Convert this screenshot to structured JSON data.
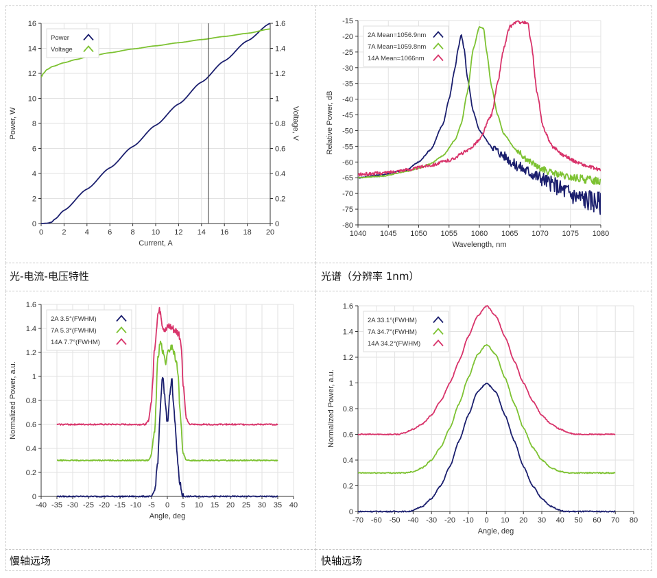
{
  "captions": {
    "liv": "光-电流-电压特性",
    "spectrum": "光谱（分辨率 1nm）",
    "slow_axis": "慢轴远场",
    "fast_axis": "快轴远场"
  },
  "colors": {
    "navy": "#1b1f6e",
    "green": "#7dc232",
    "magenta": "#d8336a",
    "grid": "#e2e2e2",
    "axis": "#333333"
  },
  "chart_data": [
    {
      "id": "liv",
      "type": "line",
      "title": "",
      "xlabel": "Current, A",
      "ylabel": "Power, W",
      "y2label": "Voltage, V",
      "xlim": [
        0,
        20
      ],
      "ylim": [
        0,
        16
      ],
      "y2lim": [
        0,
        1.6
      ],
      "xticks": [
        0,
        2,
        4,
        6,
        8,
        10,
        12,
        14,
        16,
        18,
        20
      ],
      "xtick_labels": [
        "0",
        "2",
        "4",
        "6",
        "8",
        "10",
        "12",
        "14",
        "16",
        "18",
        "20"
      ],
      "yticks": [
        0,
        2,
        4,
        6,
        8,
        10,
        12,
        14,
        16
      ],
      "ytick_labels": [
        "0",
        "2",
        "4",
        "6",
        "8",
        "10",
        "12",
        "14",
        "16"
      ],
      "y2ticks": [
        0,
        0.2,
        0.4,
        0.6,
        0.8,
        1,
        1.2,
        1.4,
        1.6
      ],
      "y2tick_labels": [
        "0",
        "0.2",
        "0.4",
        "0.6",
        "0.8",
        "1",
        "1.2",
        "1.4",
        "1.6"
      ],
      "legend_position": "top-left",
      "marker_line_x": 14.6,
      "series": [
        {
          "name": "Power",
          "color": "navy",
          "axis": "y",
          "x": [
            0,
            0.5,
            0.9,
            1.2,
            2,
            4,
            6,
            8,
            10,
            12,
            14,
            16,
            18,
            20
          ],
          "y": [
            0,
            0.02,
            0.1,
            0.35,
            1.05,
            2.75,
            4.45,
            6.15,
            7.85,
            9.55,
            11.3,
            13.0,
            14.6,
            16.0
          ]
        },
        {
          "name": "Voltage",
          "color": "green",
          "axis": "y2",
          "x": [
            0,
            0.2,
            0.5,
            1,
            2,
            3,
            4,
            6,
            8,
            10,
            12,
            14,
            16,
            18,
            20
          ],
          "y": [
            1.17,
            1.2,
            1.23,
            1.255,
            1.285,
            1.31,
            1.33,
            1.365,
            1.395,
            1.42,
            1.445,
            1.47,
            1.495,
            1.52,
            1.555
          ]
        }
      ]
    },
    {
      "id": "spectrum",
      "type": "line",
      "title": "",
      "xlabel": "Wavelength, nm",
      "ylabel": "Relative Power, dB",
      "xlim": [
        1040,
        1080
      ],
      "ylim": [
        -80,
        -15
      ],
      "xticks": [
        1040,
        1045,
        1050,
        1055,
        1060,
        1065,
        1070,
        1075,
        1080
      ],
      "xtick_labels": [
        "1040",
        "1045",
        "1050",
        "1055",
        "1060",
        "1065",
        "1070",
        "1075",
        "1080"
      ],
      "yticks": [
        -80,
        -75,
        -70,
        -65,
        -60,
        -55,
        -50,
        -45,
        -40,
        -35,
        -30,
        -25,
        -20,
        -15
      ],
      "ytick_labels": [
        "-80",
        "-75",
        "-70",
        "-65",
        "-60",
        "-55",
        "-50",
        "-45",
        "-40",
        "-35",
        "-30",
        "-25",
        "-20",
        "-15"
      ],
      "legend_position": "top-left",
      "series": [
        {
          "name": "2A Mean=1056.9nm",
          "color": "navy",
          "noise": 1.2,
          "noise_from": 1062,
          "noise_extra": 2.5,
          "x": [
            1040,
            1044,
            1048,
            1050,
            1052,
            1054,
            1055,
            1056,
            1056.5,
            1057,
            1057.5,
            1058,
            1059,
            1060,
            1062,
            1064,
            1066,
            1068,
            1070,
            1072,
            1074,
            1076,
            1078,
            1080
          ],
          "y": [
            -65,
            -64,
            -62.5,
            -60,
            -56,
            -48,
            -40,
            -30,
            -24,
            -19.5,
            -24,
            -33,
            -44,
            -50,
            -55,
            -58,
            -61,
            -63,
            -65,
            -67,
            -69,
            -71,
            -72,
            -73
          ]
        },
        {
          "name": "7A Mean=1059.8nm",
          "color": "green",
          "noise": 0.8,
          "noise_from": 1066,
          "noise_extra": 0.6,
          "x": [
            1040,
            1044,
            1048,
            1050,
            1052,
            1054,
            1056,
            1057,
            1058,
            1059,
            1060,
            1060.7,
            1061.2,
            1062,
            1063,
            1064,
            1066,
            1068,
            1070,
            1072,
            1075,
            1080
          ],
          "y": [
            -65,
            -64.5,
            -63,
            -62,
            -60.5,
            -58,
            -53,
            -48,
            -38,
            -24,
            -17,
            -17.5,
            -25,
            -36,
            -45,
            -51,
            -56,
            -59.5,
            -62,
            -63.5,
            -65,
            -66
          ]
        },
        {
          "name": "14A Mean=1066nm",
          "color": "magenta",
          "noise": 0.5,
          "noise_from": 1040,
          "noise_extra": 0,
          "x": [
            1040,
            1044,
            1048,
            1052,
            1055,
            1058,
            1060,
            1062,
            1063,
            1064,
            1065,
            1066,
            1067,
            1068,
            1068.6,
            1069.5,
            1070.5,
            1072,
            1074,
            1076,
            1078,
            1080
          ],
          "y": [
            -64,
            -63.5,
            -62.5,
            -61,
            -59.5,
            -56.5,
            -53,
            -45,
            -35,
            -24,
            -17,
            -15.5,
            -15.5,
            -16,
            -23,
            -38,
            -49,
            -55,
            -58,
            -60,
            -61.5,
            -62.5
          ]
        }
      ]
    },
    {
      "id": "slow_axis",
      "type": "line",
      "title": "",
      "xlabel": "Angle, deg",
      "ylabel": "Normalized Power, a.u.",
      "xlim": [
        -40,
        40
      ],
      "ylim": [
        0,
        1.6
      ],
      "xticks": [
        -40,
        -35,
        -30,
        -25,
        -20,
        -15,
        -10,
        -5,
        0,
        5,
        10,
        15,
        20,
        25,
        30,
        35,
        40
      ],
      "xtick_labels": [
        "-40",
        "-35",
        "-30",
        "-25",
        "-20",
        "-15",
        "-10",
        "-5",
        "0",
        "5",
        "10",
        "15",
        "20",
        "25",
        "30",
        "35",
        "40"
      ],
      "yticks": [
        0,
        0.2,
        0.4,
        0.6,
        0.8,
        1,
        1.2,
        1.4,
        1.6
      ],
      "ytick_labels": [
        "0",
        "0.2",
        "0.4",
        "0.6",
        "0.8",
        "1",
        "1.2",
        "1.4",
        "1.6"
      ],
      "legend_position": "top-left",
      "series": [
        {
          "name": "2A 3.5°(FWHM)",
          "color": "navy",
          "noise": 0.03,
          "noise_from": -4,
          "noise_to": 5,
          "x": [
            -35,
            -5,
            -4,
            -3,
            -2.2,
            -1.5,
            -0.8,
            0,
            0.8,
            1.4,
            2,
            2.6,
            3.2,
            4,
            5,
            35
          ],
          "y": [
            0,
            0,
            0.05,
            0.3,
            0.75,
            1.0,
            0.82,
            0.62,
            0.85,
            0.98,
            0.78,
            0.55,
            0.3,
            0.1,
            0,
            0
          ]
        },
        {
          "name": "7A 5.3°(FWHM)",
          "color": "green",
          "noise": 0.03,
          "noise_from": -5,
          "noise_to": 5,
          "x": [
            -35,
            -6,
            -5,
            -4,
            -3,
            -2.2,
            -1.5,
            -0.5,
            0.5,
            1.5,
            2.5,
            3.5,
            4,
            5,
            6,
            35
          ],
          "y": [
            0.3,
            0.3,
            0.35,
            0.55,
            1.15,
            1.3,
            1.2,
            1.12,
            1.22,
            1.25,
            1.16,
            1.02,
            0.7,
            0.36,
            0.3,
            0.3
          ]
        },
        {
          "name": "14A 7.7°(FWHM)",
          "color": "magenta",
          "noise": 0.035,
          "noise_from": -5,
          "noise_to": 5,
          "x": [
            -35,
            -7,
            -6,
            -5,
            -4,
            -3,
            -2.2,
            -1.5,
            -0.5,
            0.5,
            1.5,
            2.5,
            3.5,
            4.3,
            5,
            6,
            7,
            35
          ],
          "y": [
            0.6,
            0.6,
            0.63,
            0.8,
            1.25,
            1.52,
            1.55,
            1.42,
            1.38,
            1.42,
            1.4,
            1.38,
            1.36,
            1.3,
            0.95,
            0.65,
            0.6,
            0.6
          ]
        }
      ]
    },
    {
      "id": "fast_axis",
      "type": "line",
      "title": "",
      "xlabel": "Angle, deg",
      "ylabel": "Normalized Power, a.u.",
      "xlim": [
        -70,
        80
      ],
      "ylim": [
        0,
        1.6
      ],
      "xticks": [
        -70,
        -60,
        -50,
        -40,
        -30,
        -20,
        -10,
        0,
        10,
        20,
        30,
        40,
        50,
        60,
        70,
        80
      ],
      "xtick_labels": [
        "-70",
        "-60",
        "-50",
        "-40",
        "-30",
        "-20",
        "-10",
        "0",
        "10",
        "20",
        "30",
        "40",
        "50",
        "60",
        "70",
        "80"
      ],
      "yticks": [
        0,
        0.2,
        0.4,
        0.6,
        0.8,
        1,
        1.2,
        1.4,
        1.6
      ],
      "ytick_labels": [
        "0",
        "0.2",
        "0.4",
        "0.6",
        "0.8",
        "1",
        "1.2",
        "1.4",
        "1.6"
      ],
      "legend_position": "top-left",
      "series": [
        {
          "name": "2A 33.1°(FWHM)",
          "color": "navy",
          "noise": 0.004,
          "noise_from": -70,
          "noise_to": 70,
          "x": [
            -70,
            -42,
            -40,
            -35,
            -30,
            -25,
            -20,
            -15,
            -10,
            -5,
            0,
            5,
            10,
            15,
            20,
            25,
            30,
            35,
            40,
            42,
            70
          ],
          "y": [
            0,
            0,
            0.01,
            0.04,
            0.1,
            0.2,
            0.35,
            0.55,
            0.75,
            0.93,
            1.0,
            0.93,
            0.75,
            0.55,
            0.35,
            0.2,
            0.1,
            0.04,
            0.01,
            0,
            0
          ]
        },
        {
          "name": "7A 34.7°(FWHM)",
          "color": "green",
          "noise": 0.004,
          "noise_from": -70,
          "noise_to": 70,
          "x": [
            -70,
            -45,
            -40,
            -35,
            -30,
            -25,
            -20,
            -15,
            -10,
            -5,
            0,
            5,
            10,
            15,
            20,
            25,
            30,
            35,
            40,
            45,
            70
          ],
          "y": [
            0.3,
            0.3,
            0.31,
            0.34,
            0.4,
            0.5,
            0.65,
            0.84,
            1.04,
            1.22,
            1.3,
            1.22,
            1.04,
            0.84,
            0.65,
            0.5,
            0.4,
            0.34,
            0.31,
            0.3,
            0.3
          ]
        },
        {
          "name": "14A 34.2°(FWHM)",
          "color": "magenta",
          "noise": 0.004,
          "noise_from": -70,
          "noise_to": 70,
          "x": [
            -70,
            -48,
            -45,
            -40,
            -35,
            -30,
            -25,
            -20,
            -15,
            -10,
            -5,
            0,
            5,
            10,
            15,
            20,
            25,
            30,
            35,
            40,
            45,
            48,
            70
          ],
          "y": [
            0.6,
            0.6,
            0.61,
            0.64,
            0.68,
            0.75,
            0.86,
            1.0,
            1.17,
            1.36,
            1.52,
            1.6,
            1.52,
            1.36,
            1.17,
            1.0,
            0.86,
            0.75,
            0.68,
            0.64,
            0.61,
            0.6,
            0.6
          ]
        }
      ]
    }
  ]
}
